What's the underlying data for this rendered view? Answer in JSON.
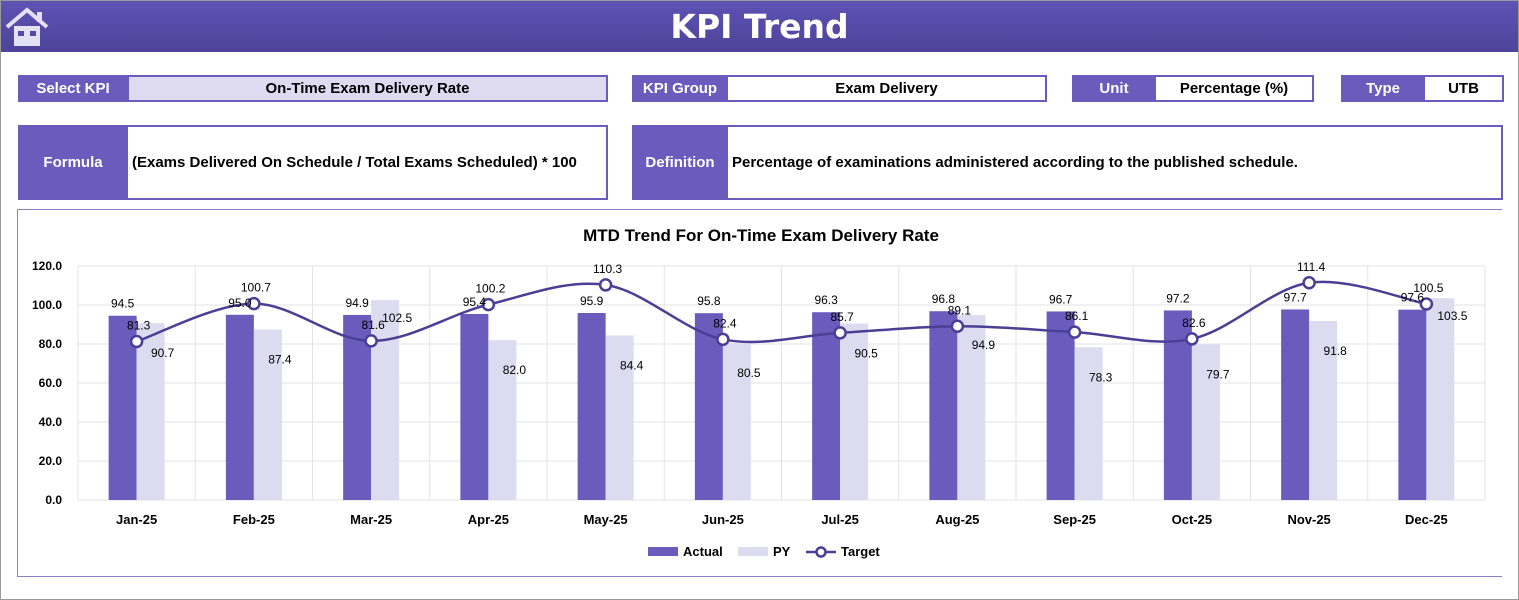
{
  "header": {
    "title": "KPI Trend",
    "home_icon": "home-icon"
  },
  "fields": {
    "select_kpi_label": "Select KPI",
    "select_kpi_value": "On-Time Exam Delivery Rate",
    "kpi_group_label": "KPI Group",
    "kpi_group_value": "Exam Delivery",
    "unit_label": "Unit",
    "unit_value": "Percentage (%)",
    "type_label": "Type",
    "type_value": "UTB",
    "formula_label": "Formula",
    "formula_value": "(Exams Delivered On Schedule / Total Exams Scheduled) * 100",
    "definition_label": "Definition",
    "definition_value": "Percentage of examinations administered according to the published schedule."
  },
  "colors": {
    "actual": "#6a5bbc",
    "py": "#dddbf0",
    "target": "#4b3f95",
    "header": "#554aa6"
  },
  "chart_data": {
    "type": "bar",
    "title": "MTD Trend For On-Time Exam Delivery Rate",
    "categories": [
      "Jan-25",
      "Feb-25",
      "Mar-25",
      "Apr-25",
      "May-25",
      "Jun-25",
      "Jul-25",
      "Aug-25",
      "Sep-25",
      "Oct-25",
      "Nov-25",
      "Dec-25"
    ],
    "series": [
      {
        "name": "Actual",
        "type": "bar",
        "values": [
          94.5,
          95.0,
          94.9,
          95.4,
          95.9,
          95.8,
          96.3,
          96.8,
          96.7,
          97.2,
          97.7,
          97.6
        ]
      },
      {
        "name": "PY",
        "type": "bar",
        "values": [
          90.7,
          87.4,
          102.5,
          82.0,
          84.4,
          80.5,
          90.5,
          94.9,
          78.3,
          79.7,
          91.8,
          103.5
        ]
      },
      {
        "name": "Target",
        "type": "line",
        "values": [
          81.3,
          100.7,
          81.6,
          100.2,
          110.3,
          82.4,
          85.7,
          89.1,
          86.1,
          82.6,
          111.4,
          100.5
        ]
      }
    ],
    "yticks": [
      "0.0",
      "20.0",
      "40.0",
      "60.0",
      "80.0",
      "100.0",
      "120.0"
    ],
    "ylim": [
      0,
      120
    ],
    "grid": true,
    "legend": "bottom"
  }
}
